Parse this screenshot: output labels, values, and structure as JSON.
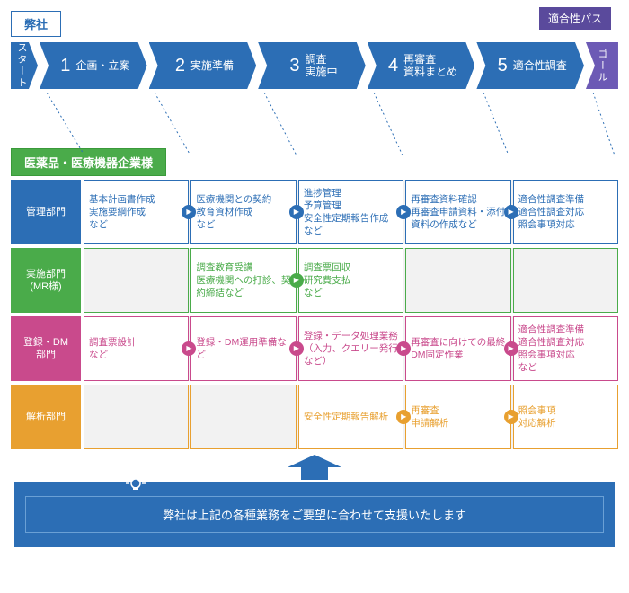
{
  "company_tag": "弊社",
  "pass_badge": "適合性パス",
  "timeline": {
    "start": "スタート",
    "goal": "ゴール",
    "steps": [
      {
        "num": "1",
        "label": "企画・立案"
      },
      {
        "num": "2",
        "label": "実施準備"
      },
      {
        "num": "3",
        "label": "調査\n実施中"
      },
      {
        "num": "4",
        "label": "再審査\n資料まとめ"
      },
      {
        "num": "5",
        "label": "適合性調査"
      }
    ]
  },
  "client_header": "医薬品・医療機器企業様",
  "rows": [
    {
      "id": "mgmt",
      "theme": "blue",
      "header": "管理部門",
      "cells": [
        {
          "text": "基本計画書作成\n実施要綱作成\nなど",
          "arrow": true
        },
        {
          "text": "医療機関との契約\n教育資材作成\nなど",
          "arrow": true
        },
        {
          "text": "進捗管理\n予算管理\n安全性定期報告作成　　など",
          "arrow": true
        },
        {
          "text": "再審査資料確認\n再審査申請資料・添付資料の作成など",
          "arrow": true
        },
        {
          "text": "適合性調査準備\n適合性調査対応\n照会事項対応",
          "arrow": false
        }
      ]
    },
    {
      "id": "mr",
      "theme": "green",
      "header": "実施部門\n(MR様)",
      "cells": [
        {
          "empty": true
        },
        {
          "text": "調査教育受講\n医療機関への打診、契約締結など",
          "arrow": true
        },
        {
          "text": "調査票回収\n研究費支払\nなど",
          "arrow": false
        },
        {
          "empty": true
        },
        {
          "empty": true
        }
      ]
    },
    {
      "id": "dm",
      "theme": "magenta",
      "header": "登録・DM\n部門",
      "cells": [
        {
          "text": "調査票設計\nなど",
          "arrow": true
        },
        {
          "text": "登録・DM運用準備など",
          "arrow": true
        },
        {
          "text": "登録・データ処理業務\n（入力、クエリー発行など）",
          "arrow": true
        },
        {
          "text": "再審査に向けての最終DM固定作業",
          "arrow": true
        },
        {
          "text": "適合性調査準備\n適合性調査対応\n照会事項対応\nなど",
          "arrow": false
        }
      ]
    },
    {
      "id": "ana",
      "theme": "orange",
      "header": "解析部門",
      "cells": [
        {
          "empty": true
        },
        {
          "empty": true
        },
        {
          "text": "安全性定期報告解析",
          "arrow": true
        },
        {
          "text": "再審査\n申請解析",
          "arrow": true
        },
        {
          "text": "照会事項\n対応解析",
          "arrow": false
        }
      ]
    }
  ],
  "footer": "弊社は上記の各種業務をご要望に合わせて支援いたします",
  "colors": {
    "blue": "#2c6eb5",
    "green": "#4aab4a",
    "magenta": "#c94a8c",
    "orange": "#e8a030",
    "purple": "#6c5ab5",
    "grey": "#f2f2f2"
  }
}
